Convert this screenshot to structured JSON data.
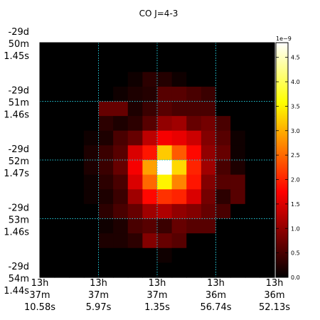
{
  "chart_data": {
    "type": "heatmap",
    "title": "CO J=4-3",
    "xlabel": "",
    "ylabel": "",
    "x_ticks": [
      [
        "13h",
        "37m",
        "10.58s"
      ],
      [
        "13h",
        "37m",
        "5.97s"
      ],
      [
        "13h",
        "37m",
        "1.35s"
      ],
      [
        "13h",
        "36m",
        "56.74s"
      ],
      [
        "13h",
        "36m",
        "52.13s"
      ]
    ],
    "y_ticks": [
      [
        "-29d",
        "50m",
        "1.45s"
      ],
      [
        "-29d",
        "51m",
        "1.46s"
      ],
      [
        "-29d",
        "52m",
        "1.47s"
      ],
      [
        "-29d",
        "53m",
        "1.46s"
      ],
      [
        "-29d",
        "54m",
        "1.44s"
      ]
    ],
    "grid": true,
    "colormap": "hot",
    "colorbar": {
      "min": 0.0,
      "max": 4.8,
      "exponent_label": "1e−9",
      "ticks": [
        "0.0",
        "0.5",
        "1.0",
        "1.5",
        "2.0",
        "2.5",
        "3.0",
        "3.5",
        "4.0",
        "4.5"
      ]
    },
    "rows": 16,
    "cols": 16,
    "values": [
      [
        0,
        0,
        0,
        0,
        0,
        0,
        0,
        0,
        0,
        0,
        0,
        0,
        0,
        0,
        0,
        0
      ],
      [
        0,
        0,
        0,
        0,
        0,
        0,
        0,
        0,
        0,
        0,
        0,
        0,
        0,
        0,
        0,
        0
      ],
      [
        0,
        0,
        0,
        0,
        0,
        0,
        0.1,
        0.3,
        0.25,
        0.1,
        0,
        0,
        0,
        0,
        0,
        0
      ],
      [
        0,
        0,
        0,
        0,
        0,
        0.1,
        0.2,
        0.25,
        0.6,
        0.6,
        0.5,
        0.4,
        0,
        0,
        0,
        0
      ],
      [
        0,
        0,
        0,
        0,
        0.7,
        0.7,
        0.2,
        0.4,
        0.6,
        0.5,
        0.5,
        0.5,
        0,
        0,
        0,
        0
      ],
      [
        0,
        0,
        0,
        0,
        0.3,
        0.2,
        0.3,
        0.6,
        1.0,
        1.1,
        0.7,
        0.8,
        0.5,
        0,
        0,
        0
      ],
      [
        0,
        0,
        0,
        0.1,
        0.2,
        0.5,
        0.7,
        1.3,
        1.7,
        1.6,
        1.4,
        0.9,
        0.6,
        0.1,
        0,
        0
      ],
      [
        0,
        0,
        0,
        0.2,
        0.4,
        0.6,
        1.5,
        1.9,
        3.2,
        2.4,
        1.8,
        1.0,
        0.7,
        0.1,
        0,
        0
      ],
      [
        0,
        0,
        0,
        0.2,
        0.4,
        0.7,
        1.7,
        2.9,
        4.8,
        3.3,
        2.0,
        1.1,
        0.5,
        0.2,
        0,
        0
      ],
      [
        0,
        0,
        0,
        0.1,
        0.3,
        0.5,
        1.5,
        2.5,
        3.5,
        2.7,
        1.9,
        0.9,
        0.6,
        0.6,
        0,
        0
      ],
      [
        0,
        0,
        0,
        0.1,
        0.2,
        0.4,
        1.1,
        1.8,
        2.1,
        2.0,
        1.5,
        0.8,
        0.3,
        0.6,
        0,
        0
      ],
      [
        0,
        0,
        0,
        0,
        0.3,
        0.5,
        0.7,
        1.1,
        1.2,
        1.0,
        0.9,
        0.7,
        0.5,
        0,
        0,
        0
      ],
      [
        0,
        0,
        0,
        0,
        0.1,
        0.2,
        0.5,
        0.6,
        0.4,
        0.7,
        0.6,
        0.6,
        0,
        0,
        0,
        0
      ],
      [
        0,
        0,
        0,
        0,
        0.2,
        0.2,
        0.3,
        0.9,
        0.7,
        0.6,
        0,
        0,
        0,
        0,
        0,
        0
      ],
      [
        0,
        0,
        0,
        0,
        0,
        0,
        0,
        0,
        0.1,
        0,
        0,
        0,
        0,
        0,
        0,
        0
      ],
      [
        0,
        0,
        0,
        0,
        0,
        0,
        0,
        0,
        0,
        0,
        0,
        0,
        0,
        0,
        0,
        0
      ]
    ]
  }
}
